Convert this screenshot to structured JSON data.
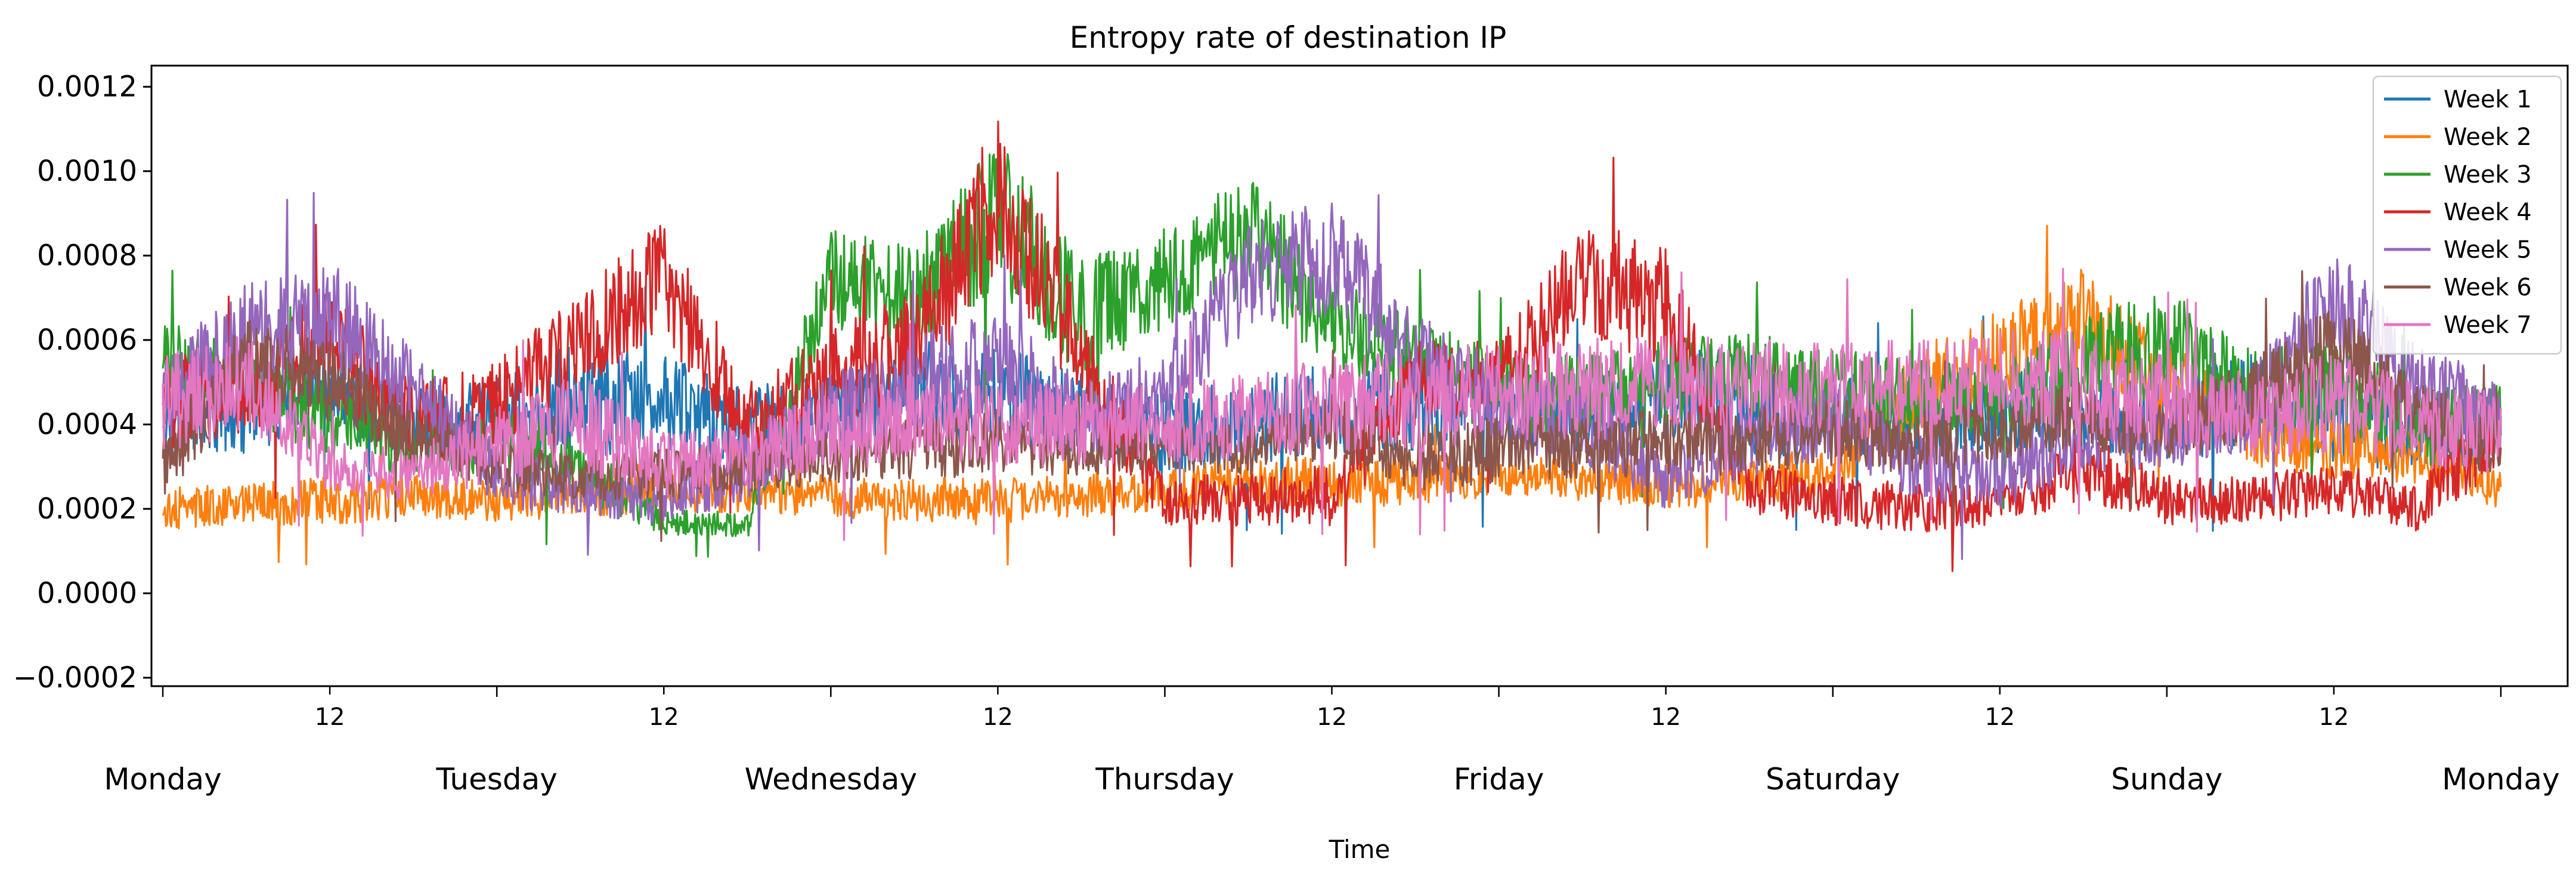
{
  "chart_data": {
    "type": "line",
    "title": "Entropy rate of destination IP",
    "xlabel": "Time",
    "ylabel": "",
    "ylim": [
      -0.00022,
      0.00125
    ],
    "xlim": [
      -0.034,
      7.2
    ],
    "y_ticks": [
      "−0.0002",
      "0.0000",
      "0.0002",
      "0.0004",
      "0.0006",
      "0.0008",
      "0.0010",
      "0.0012"
    ],
    "y_tick_values": [
      -0.0002,
      0.0,
      0.0002,
      0.0004,
      0.0006,
      0.0008,
      0.001,
      0.0012
    ],
    "x_minor_ticks": [
      "12",
      "12",
      "12",
      "12",
      "12",
      "12",
      "12"
    ],
    "x_minor_values": [
      0.5,
      1.5,
      2.5,
      3.5,
      4.5,
      5.5,
      6.5
    ],
    "x_major_ticks": [
      "Monday",
      "Tuesday",
      "Wednesday",
      "Thursday",
      "Friday",
      "Saturday",
      "Sunday",
      "Monday"
    ],
    "x_major_values": [
      0,
      1,
      2,
      3,
      4,
      5,
      6,
      7
    ],
    "x_unit": "days since Monday 00:00",
    "legend_position": "top-right",
    "grid": false,
    "series": [
      {
        "name": "Week 1",
        "color": "#1f77b4",
        "x": [
          0,
          0.25,
          0.5,
          0.75,
          1.0,
          1.25,
          1.5,
          1.75,
          2.0,
          2.25,
          2.5,
          2.75,
          3.0,
          3.25,
          3.5,
          3.75,
          4.0,
          4.25,
          4.5,
          4.75,
          5.0,
          5.25,
          5.5,
          5.75,
          6.0,
          6.25,
          6.5,
          6.75,
          7.0
        ],
        "y": [
          0.00045,
          0.00043,
          0.00048,
          0.00038,
          0.00042,
          0.00046,
          0.00045,
          0.0004,
          0.00042,
          0.00048,
          0.00047,
          0.00042,
          0.00038,
          0.00041,
          0.00044,
          0.00046,
          0.00042,
          0.00043,
          0.00047,
          0.00045,
          0.00042,
          0.00042,
          0.00044,
          0.00043,
          0.00042,
          0.00045,
          0.00043,
          0.00038,
          0.00036
        ],
        "amp": [
          0.00012,
          0.0001,
          8e-05,
          0.0001,
          0.0001,
          0.00014,
          0.00012,
          0.0001,
          0.0001,
          0.00012,
          0.00012,
          0.0001,
          0.0001,
          0.0001,
          0.00012,
          0.00012,
          0.0001,
          0.0001,
          0.00012,
          0.00012,
          0.0001,
          0.0001,
          0.0001,
          0.0001,
          0.0001,
          0.00012,
          0.00012,
          0.0001,
          0.0001
        ]
      },
      {
        "name": "Week 2",
        "color": "#ff7f0e",
        "x": [
          0,
          0.25,
          0.5,
          0.75,
          1.0,
          1.25,
          1.5,
          1.75,
          2.0,
          2.25,
          2.5,
          2.75,
          3.0,
          3.25,
          3.5,
          3.75,
          4.0,
          4.25,
          4.5,
          4.75,
          5.0,
          5.25,
          5.5,
          5.75,
          6.0,
          6.25,
          6.5,
          6.75,
          7.0
        ],
        "y": [
          0.0002,
          0.00021,
          0.00022,
          0.00023,
          0.00022,
          0.00024,
          0.00025,
          0.00024,
          0.00023,
          0.00022,
          0.00022,
          0.00023,
          0.00024,
          0.00027,
          0.00026,
          0.00027,
          0.00028,
          0.00027,
          0.00026,
          0.00027,
          0.00029,
          0.00048,
          0.00055,
          0.00065,
          0.0005,
          0.00038,
          0.00035,
          0.00032,
          0.00025
        ],
        "amp": [
          5e-05,
          5e-05,
          6e-05,
          5e-05,
          5e-05,
          6e-05,
          6e-05,
          5e-05,
          5e-05,
          5e-05,
          6e-05,
          5e-05,
          5e-05,
          6e-05,
          6e-05,
          6e-05,
          5e-05,
          5e-05,
          6e-05,
          6e-05,
          6e-05,
          0.0001,
          0.00012,
          0.00012,
          0.0001,
          8e-05,
          8e-05,
          6e-05,
          5e-05
        ]
      },
      {
        "name": "Week 3",
        "color": "#2ca02c",
        "x": [
          0,
          0.25,
          0.5,
          0.75,
          1.0,
          1.25,
          1.5,
          1.75,
          2.0,
          2.25,
          2.5,
          2.75,
          3.0,
          3.25,
          3.5,
          3.75,
          4.0,
          4.25,
          4.5,
          4.75,
          5.0,
          5.25,
          5.5,
          5.75,
          6.0,
          6.25,
          6.5,
          6.75,
          7.0
        ],
        "y": [
          0.00055,
          0.0005,
          0.00042,
          0.00035,
          0.00036,
          0.0003,
          0.00017,
          0.00016,
          0.00075,
          0.0007,
          0.0009,
          0.00065,
          0.00075,
          0.00085,
          0.00065,
          0.00055,
          0.00048,
          0.00046,
          0.0005,
          0.00052,
          0.00048,
          0.00045,
          0.00046,
          0.00055,
          0.00058,
          0.00048,
          0.0005,
          0.0004,
          0.0004
        ],
        "amp": [
          0.0001,
          0.0001,
          0.0001,
          8e-05,
          8e-05,
          8e-05,
          3e-05,
          3e-05,
          0.00012,
          0.00012,
          0.00018,
          0.00014,
          0.00012,
          0.00014,
          0.00012,
          0.0001,
          0.0001,
          0.0001,
          0.0001,
          0.0001,
          0.0001,
          0.0001,
          0.0001,
          0.00012,
          0.00014,
          0.0001,
          0.0001,
          0.0001,
          0.0001
        ]
      },
      {
        "name": "Week 4",
        "color": "#d62728",
        "x": [
          0,
          0.25,
          0.5,
          0.75,
          1.0,
          1.25,
          1.5,
          1.75,
          2.0,
          2.25,
          2.5,
          2.75,
          3.0,
          3.25,
          3.5,
          3.75,
          4.0,
          4.25,
          4.5,
          4.75,
          5.0,
          5.25,
          5.5,
          5.75,
          6.0,
          6.25,
          6.5,
          6.75,
          7.0
        ],
        "y": [
          0.00045,
          0.00048,
          0.0006,
          0.0004,
          0.00045,
          0.0006,
          0.00075,
          0.0004,
          0.0005,
          0.0006,
          0.00095,
          0.00055,
          0.00022,
          0.00022,
          0.00024,
          0.0005,
          0.0005,
          0.00075,
          0.00068,
          0.00025,
          0.00022,
          0.0002,
          0.00022,
          0.0003,
          0.00022,
          0.00022,
          0.00025,
          0.0002,
          0.0004
        ],
        "amp": [
          0.00012,
          0.0001,
          0.00014,
          0.0001,
          0.0001,
          0.00012,
          0.00014,
          0.0001,
          0.00012,
          0.00014,
          0.00018,
          0.00014,
          6e-05,
          6e-05,
          8e-05,
          0.0001,
          0.0001,
          0.00014,
          0.00014,
          6e-05,
          6e-05,
          6e-05,
          6e-05,
          8e-05,
          6e-05,
          6e-05,
          6e-05,
          6e-05,
          0.0001
        ]
      },
      {
        "name": "Week 5",
        "color": "#9467bd",
        "x": [
          0,
          0.25,
          0.5,
          0.75,
          1.0,
          1.25,
          1.5,
          1.75,
          2.0,
          2.25,
          2.5,
          2.75,
          3.0,
          3.25,
          3.5,
          3.75,
          4.0,
          4.25,
          4.5,
          4.75,
          5.0,
          5.25,
          5.5,
          5.75,
          6.0,
          6.25,
          6.5,
          6.75,
          7.0
        ],
        "y": [
          0.00045,
          0.0006,
          0.00065,
          0.00048,
          0.00028,
          0.00025,
          0.00022,
          0.0003,
          0.00042,
          0.0005,
          0.00055,
          0.00042,
          0.00048,
          0.00075,
          0.0008,
          0.00055,
          0.00045,
          0.0004,
          0.00028,
          0.00035,
          0.00042,
          0.0003,
          0.00028,
          0.00036,
          0.00038,
          0.00042,
          0.0007,
          0.00048,
          0.00042
        ],
        "amp": [
          0.00012,
          0.00014,
          0.00014,
          0.0001,
          8e-05,
          6e-05,
          6e-05,
          8e-05,
          0.0001,
          0.00012,
          0.00012,
          0.0001,
          0.0001,
          0.00012,
          0.00014,
          0.00012,
          0.0001,
          0.0001,
          8e-05,
          8e-05,
          0.0001,
          8e-05,
          8e-05,
          8e-05,
          8e-05,
          0.0001,
          0.00014,
          0.0001,
          0.0001
        ]
      },
      {
        "name": "Week 6",
        "color": "#8c564b",
        "x": [
          0,
          0.25,
          0.5,
          0.75,
          1.0,
          1.25,
          1.5,
          1.75,
          2.0,
          2.25,
          2.5,
          2.75,
          3.0,
          3.25,
          3.5,
          3.75,
          4.0,
          4.25,
          4.5,
          4.75,
          5.0,
          5.25,
          5.5,
          5.75,
          6.0,
          6.25,
          6.5,
          6.75,
          7.0
        ],
        "y": [
          0.0003,
          0.00055,
          0.0005,
          0.00036,
          0.0003,
          0.00028,
          0.00028,
          0.0003,
          0.00032,
          0.00035,
          0.00036,
          0.00034,
          0.00035,
          0.00034,
          0.0004,
          0.00032,
          0.00034,
          0.00035,
          0.00036,
          0.00036,
          0.00038,
          0.00036,
          0.0004,
          0.00042,
          0.0004,
          0.00045,
          0.0006,
          0.00042,
          0.00035
        ],
        "amp": [
          8e-05,
          0.0001,
          0.0001,
          8e-05,
          6e-05,
          6e-05,
          6e-05,
          6e-05,
          6e-05,
          8e-05,
          8e-05,
          6e-05,
          6e-05,
          6e-05,
          8e-05,
          8e-05,
          8e-05,
          8e-05,
          8e-05,
          8e-05,
          8e-05,
          8e-05,
          8e-05,
          8e-05,
          8e-05,
          0.0001,
          0.0001,
          8e-05,
          8e-05
        ]
      },
      {
        "name": "Week 7",
        "color": "#e377c2",
        "x": [
          0,
          0.25,
          0.5,
          0.75,
          1.0,
          1.25,
          1.5,
          1.75,
          2.0,
          2.25,
          2.5,
          2.75,
          3.0,
          3.25,
          3.5,
          3.75,
          4.0,
          4.25,
          4.5,
          4.75,
          5.0,
          5.25,
          5.5,
          5.75,
          6.0,
          6.25,
          6.5,
          6.75,
          7.0
        ],
        "y": [
          0.00045,
          0.0005,
          0.0003,
          0.00028,
          0.00035,
          0.0004,
          0.0003,
          0.00032,
          0.00038,
          0.00042,
          0.0004,
          0.0004,
          0.0004,
          0.00042,
          0.00045,
          0.00045,
          0.00048,
          0.00048,
          0.0005,
          0.00048,
          0.00048,
          0.00048,
          0.00052,
          0.0005,
          0.00045,
          0.00042,
          0.00045,
          0.0004,
          0.00038
        ],
        "amp": [
          0.00012,
          0.00012,
          6e-05,
          6e-05,
          0.0001,
          0.00012,
          8e-05,
          8e-05,
          0.0001,
          0.0001,
          0.0001,
          0.0001,
          0.0001,
          0.0001,
          0.00012,
          0.00012,
          0.00012,
          0.00012,
          0.00012,
          0.00012,
          0.00012,
          0.00012,
          0.00012,
          0.00012,
          0.00012,
          0.0001,
          0.00012,
          0.0001,
          0.0001
        ]
      }
    ]
  }
}
